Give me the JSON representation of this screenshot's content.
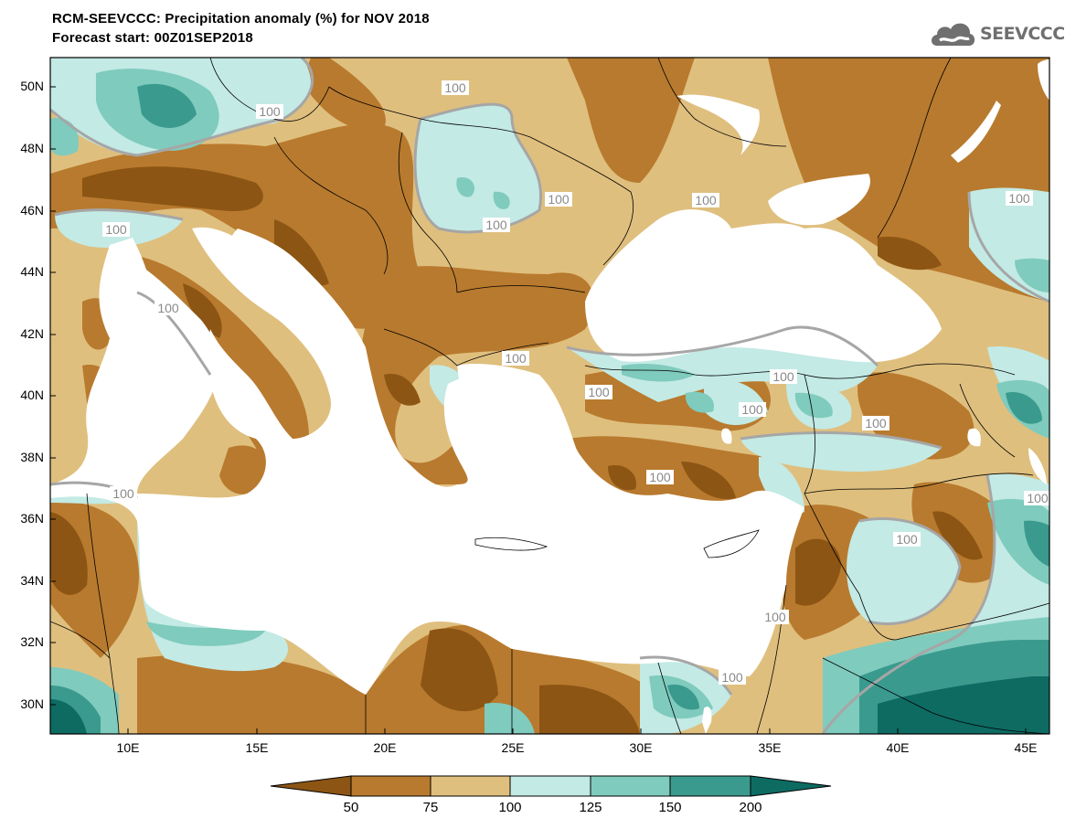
{
  "title_line1": "RCM-SEEVCCC: Precipitation anomaly (%) for NOV 2018",
  "title_line2": "Forecast start: 00Z01SEP2018",
  "logo_text": "SEEVCCC",
  "logo_icon": "cloud-icon",
  "lat_labels": [
    "50N",
    "48N",
    "46N",
    "44N",
    "42N",
    "40N",
    "38N",
    "36N",
    "34N",
    "32N",
    "30N"
  ],
  "lon_labels": [
    "10E",
    "15E",
    "20E",
    "25E",
    "30E",
    "35E",
    "40E",
    "45E"
  ],
  "contour_label": "100",
  "colorbar": {
    "labels": [
      "50",
      "75",
      "100",
      "125",
      "150",
      "200"
    ],
    "colors": [
      "#8c5514",
      "#b87a2e",
      "#dfbf7e",
      "#c3eae5",
      "#7fcbbd",
      "#3a9a8e",
      "#0d6b62"
    ]
  },
  "colors": {
    "sea": "#ffffff",
    "contour_line": "#a6a6a6",
    "border_line": "#000000"
  }
}
